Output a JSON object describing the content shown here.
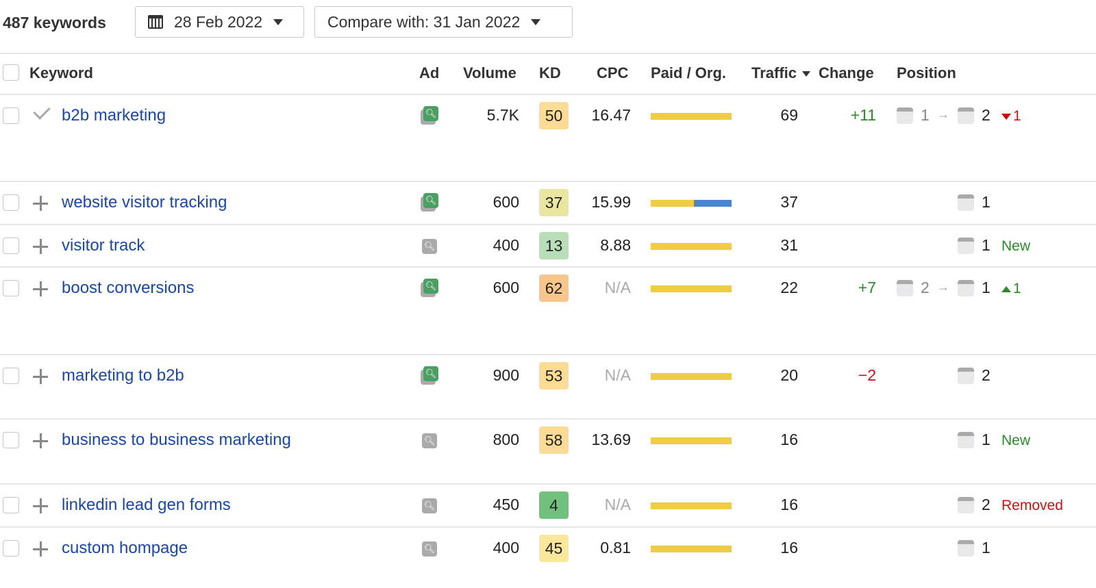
{
  "toolbar": {
    "keyword_count": "487 keywords",
    "date": "28 Feb 2022",
    "compare": "Compare with: 31 Jan 2022"
  },
  "columns": {
    "keyword": "Keyword",
    "ad": "Ad",
    "volume": "Volume",
    "kd": "KD",
    "cpc": "CPC",
    "paid_org": "Paid / Org.",
    "traffic": "Traffic",
    "change": "Change",
    "position": "Position"
  },
  "colors": {
    "organic": "#f2cb45",
    "paid": "#4a86d0",
    "link": "#1a47a8",
    "positive": "#2a8a2a",
    "negative": "#cc1111"
  },
  "rows": [
    {
      "keyword": "b2b marketing",
      "added": true,
      "ad": true,
      "volume": "5.7K",
      "kd": "50",
      "kd_color": "#fcdc94",
      "cpc": "16.47",
      "organic_share": 1,
      "traffic": "69",
      "change": "+11",
      "change_dir": "up",
      "prev_pos": "1",
      "pos": "2",
      "pos_delta": "1",
      "pos_dir": "down",
      "badge": ""
    },
    {
      "keyword": "website visitor tracking",
      "added": false,
      "ad": true,
      "volume": "600",
      "kd": "37",
      "kd_color": "#ebe69f",
      "cpc": "15.99",
      "organic_share": 0.53,
      "traffic": "37",
      "change": "",
      "pos": "1",
      "badge": ""
    },
    {
      "keyword": "visitor track",
      "added": false,
      "ad": false,
      "volume": "400",
      "kd": "13",
      "kd_color": "#b9dfb8",
      "cpc": "8.88",
      "organic_share": 1,
      "traffic": "31",
      "change": "",
      "pos": "1",
      "badge": "New",
      "badge_type": "new"
    },
    {
      "keyword": "boost conversions",
      "added": false,
      "ad": true,
      "volume": "600",
      "kd": "62",
      "kd_color": "#f8c68c",
      "cpc": "N/A",
      "organic_share": 1,
      "traffic": "22",
      "change": "+7",
      "change_dir": "up",
      "prev_pos": "2",
      "pos": "1",
      "pos_delta": "1",
      "pos_dir": "up",
      "badge": ""
    },
    {
      "keyword": "marketing to b2b",
      "added": false,
      "ad": true,
      "volume": "900",
      "kd": "53",
      "kd_color": "#fcdc94",
      "cpc": "N/A",
      "organic_share": 1,
      "traffic": "20",
      "change": "−2",
      "change_dir": "down",
      "pos": "2",
      "badge": ""
    },
    {
      "keyword": "business to business marketing",
      "added": false,
      "ad": false,
      "volume": "800",
      "kd": "58",
      "kd_color": "#fcdc94",
      "cpc": "13.69",
      "organic_share": 1,
      "traffic": "16",
      "change": "",
      "pos": "1",
      "badge": "New",
      "badge_type": "new"
    },
    {
      "keyword": "linkedin lead gen forms",
      "added": false,
      "ad": false,
      "volume": "450",
      "kd": "4",
      "kd_color": "#72c07e",
      "cpc": "N/A",
      "organic_share": 1,
      "traffic": "16",
      "change": "",
      "pos": "2",
      "badge": "Removed",
      "badge_type": "removed"
    },
    {
      "keyword": "custom hompage",
      "added": false,
      "ad": false,
      "volume": "400",
      "kd": "45",
      "kd_color": "#fbe79c",
      "cpc": "0.81",
      "organic_share": 1,
      "traffic": "16",
      "change": "",
      "pos": "1",
      "badge": ""
    }
  ]
}
